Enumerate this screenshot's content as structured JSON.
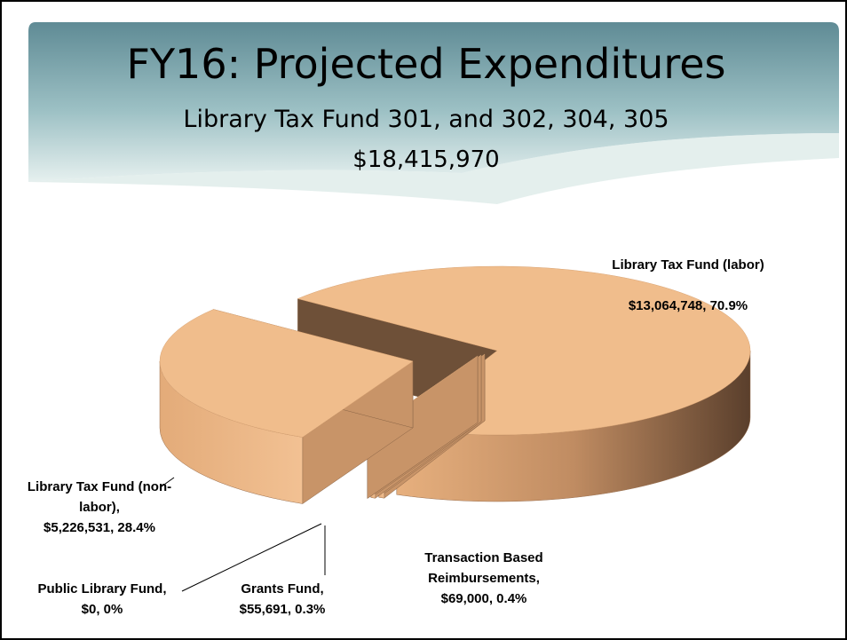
{
  "chart_data": {
    "type": "pie3d",
    "title": "FY16: Projected Expenditures",
    "subtitle": "Library Tax Fund 301, and 302, 304, 305",
    "annotations": [
      "$18,415,970"
    ],
    "categories": [
      "Library Tax Fund (labor)",
      "Transaction Based Reimbursements,",
      "Grants Fund,",
      "Public Library Fund,",
      "Library Tax Fund (non-labor),"
    ],
    "values": [
      13064748,
      69000,
      55691,
      0,
      5226531
    ],
    "value_labels": [
      "$13,064,748, 70.9%",
      "$69,000, 0.4%",
      "$55,691, 0.3%",
      "$0, 0%",
      "$5,226,531, 28.4%"
    ],
    "color": "#f0bd8c"
  }
}
